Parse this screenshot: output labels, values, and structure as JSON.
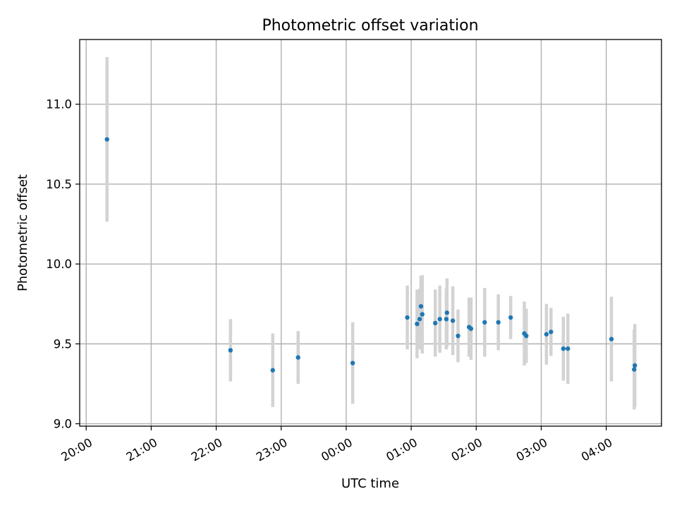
{
  "chart_data": {
    "type": "scatter",
    "title": "Photometric offset variation",
    "xlabel": "UTC time",
    "ylabel": "Photometric offset",
    "xlim_hours": [
      19.9,
      28.85
    ],
    "ylim": [
      8.985,
      11.405
    ],
    "grid": true,
    "x_ticks": [
      {
        "hours": 20,
        "label": "20:00"
      },
      {
        "hours": 21,
        "label": "21:00"
      },
      {
        "hours": 22,
        "label": "22:00"
      },
      {
        "hours": 23,
        "label": "23:00"
      },
      {
        "hours": 24,
        "label": "00:00"
      },
      {
        "hours": 25,
        "label": "01:00"
      },
      {
        "hours": 26,
        "label": "02:00"
      },
      {
        "hours": 27,
        "label": "03:00"
      },
      {
        "hours": 28,
        "label": "04:00"
      }
    ],
    "y_ticks": [
      {
        "value": 9.0,
        "label": "9.0"
      },
      {
        "value": 9.5,
        "label": "9.5"
      },
      {
        "value": 10.0,
        "label": "10.0"
      },
      {
        "value": 10.5,
        "label": "10.5"
      },
      {
        "value": 11.0,
        "label": "11.0"
      }
    ],
    "series": [
      {
        "marker_color": "#1f77b4",
        "errorbar_color": "#d3d3d3",
        "points": [
          {
            "time": "20:19",
            "x": 20.32,
            "y": 10.78,
            "err": 0.515
          },
          {
            "time": "22:13",
            "x": 22.22,
            "y": 9.46,
            "err": 0.195
          },
          {
            "time": "22:52",
            "x": 22.87,
            "y": 9.335,
            "err": 0.23
          },
          {
            "time": "23:15",
            "x": 23.26,
            "y": 9.415,
            "err": 0.165
          },
          {
            "time": "00:06",
            "x": 24.1,
            "y": 9.38,
            "err": 0.255
          },
          {
            "time": "00:56",
            "x": 24.94,
            "y": 9.665,
            "err": 0.2
          },
          {
            "time": "01:05",
            "x": 25.09,
            "y": 9.625,
            "err": 0.215
          },
          {
            "time": "01:08",
            "x": 25.13,
            "y": 9.655,
            "err": 0.19
          },
          {
            "time": "01:09",
            "x": 25.15,
            "y": 9.735,
            "err": 0.19
          },
          {
            "time": "01:10",
            "x": 25.17,
            "y": 9.685,
            "err": 0.245
          },
          {
            "time": "01:22",
            "x": 25.37,
            "y": 9.63,
            "err": 0.21
          },
          {
            "time": "01:26",
            "x": 25.44,
            "y": 9.655,
            "err": 0.21
          },
          {
            "time": "01:32",
            "x": 25.54,
            "y": 9.655,
            "err": 0.19
          },
          {
            "time": "01:33",
            "x": 25.55,
            "y": 9.695,
            "err": 0.215
          },
          {
            "time": "01:38",
            "x": 25.64,
            "y": 9.645,
            "err": 0.215
          },
          {
            "time": "01:43",
            "x": 25.72,
            "y": 9.55,
            "err": 0.165
          },
          {
            "time": "01:53",
            "x": 25.89,
            "y": 9.605,
            "err": 0.185
          },
          {
            "time": "01:55",
            "x": 25.92,
            "y": 9.595,
            "err": 0.195
          },
          {
            "time": "02:08",
            "x": 26.13,
            "y": 9.635,
            "err": 0.215
          },
          {
            "time": "02:20",
            "x": 26.34,
            "y": 9.635,
            "err": 0.175
          },
          {
            "time": "02:32",
            "x": 26.53,
            "y": 9.665,
            "err": 0.135
          },
          {
            "time": "02:44",
            "x": 26.74,
            "y": 9.565,
            "err": 0.2
          },
          {
            "time": "02:46",
            "x": 26.77,
            "y": 9.55,
            "err": 0.17
          },
          {
            "time": "03:04",
            "x": 27.08,
            "y": 9.56,
            "err": 0.19
          },
          {
            "time": "03:09",
            "x": 27.15,
            "y": 9.575,
            "err": 0.15
          },
          {
            "time": "03:20",
            "x": 27.34,
            "y": 9.47,
            "err": 0.2
          },
          {
            "time": "03:24",
            "x": 27.41,
            "y": 9.47,
            "err": 0.22
          },
          {
            "time": "04:04",
            "x": 28.08,
            "y": 9.53,
            "err": 0.265
          },
          {
            "time": "04:26",
            "x": 28.43,
            "y": 9.34,
            "err": 0.25
          },
          {
            "time": "04:26",
            "x": 28.44,
            "y": 9.365,
            "err": 0.26
          }
        ]
      }
    ]
  }
}
